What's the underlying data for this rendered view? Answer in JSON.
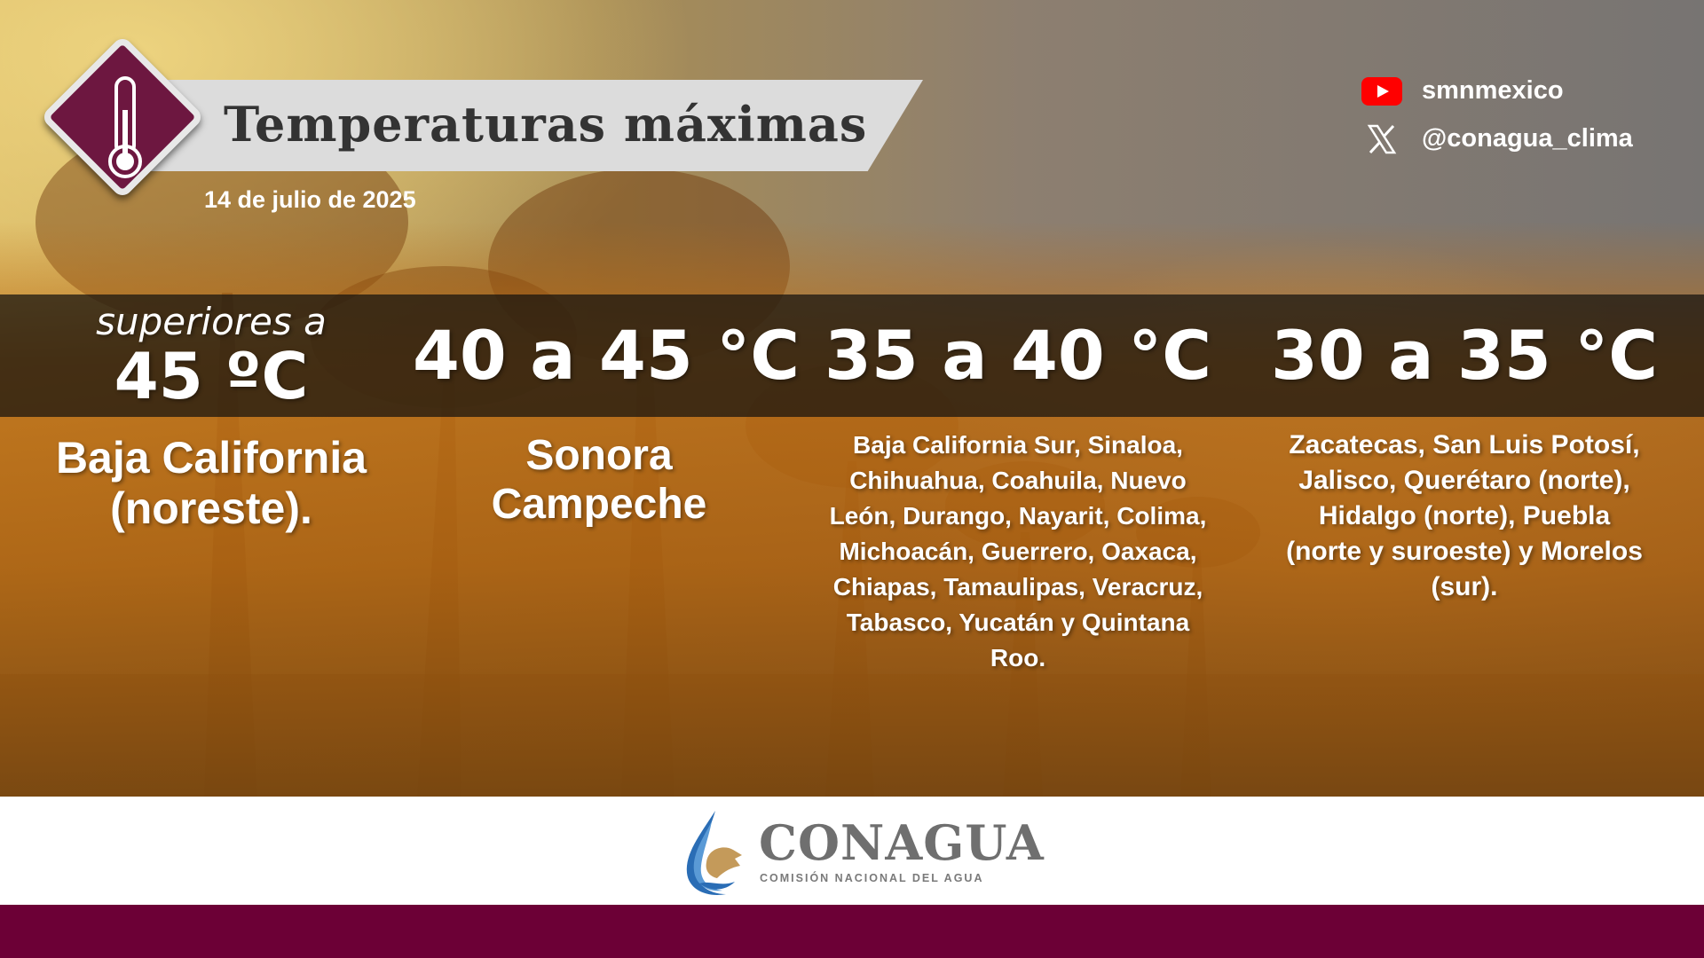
{
  "header": {
    "title": "Temperaturas máximas",
    "date": "14 de julio de 2025",
    "icon": "thermometer-icon"
  },
  "social": [
    {
      "icon": "youtube-icon",
      "handle": "smnmexico"
    },
    {
      "icon": "x-icon",
      "handle": "@conagua_clima"
    }
  ],
  "ranges": [
    {
      "prefix": "superiores a",
      "label": "45 ºC",
      "regions": "Baja California (noreste)."
    },
    {
      "label": "40 a 45 °C",
      "regions_lines": [
        "Sonora",
        "Campeche"
      ]
    },
    {
      "label": "35 a 40 °C",
      "regions": "Baja California Sur, Sinaloa, Chihuahua, Coahuila, Nuevo León, Durango, Nayarit, Colima, Michoacán, Guerrero, Oaxaca, Chiapas, Tamaulipas, Veracruz, Tabasco, Yucatán y Quintana Roo."
    },
    {
      "label": "30 a 35 °C",
      "regions": "Zacatecas, San Luis Potosí, Jalisco, Querétaro (norte), Hidalgo (norte), Puebla (norte y suroeste) y Morelos (sur)."
    }
  ],
  "footer": {
    "logo_name": "CONAGUA",
    "logo_subtitle": "COMISIÓN NACIONAL DEL AGUA"
  },
  "colors": {
    "brand_maroon": "#6c0036",
    "youtube_red": "#ff0000",
    "title_text": "#333333"
  }
}
